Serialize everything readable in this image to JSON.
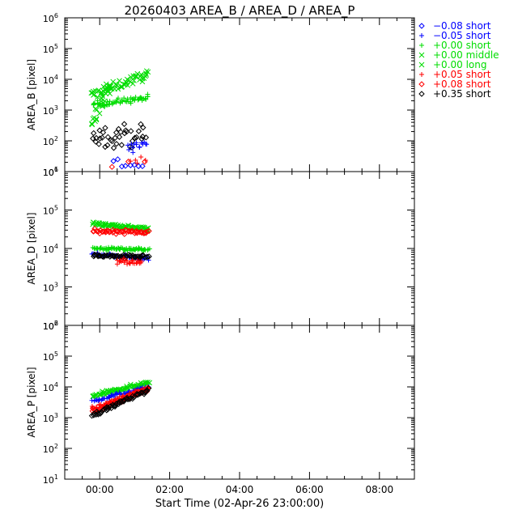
{
  "chart_data": {
    "type": "scatter",
    "title": "20260403 AREA_B / AREA_D / AREA_P",
    "xlabel": "Start Time (02-Apr-26 23:00:00)",
    "x_ticks": [
      "00:00",
      "02:00",
      "04:00",
      "06:00",
      "08:00"
    ],
    "x_unit": "hours since 23:00",
    "xlim": [
      -1.0,
      9.0
    ],
    "legend_position": "top-right",
    "legend": [
      {
        "label": "−0.08 short",
        "symbol": "diamond",
        "color": "#0000ff"
      },
      {
        "label": "−0.05 short",
        "symbol": "plus",
        "color": "#0000ff"
      },
      {
        "label": "+0.00 short",
        "symbol": "plus",
        "color": "#00dd00"
      },
      {
        "label": "+0.00 middle",
        "symbol": "cross",
        "color": "#00dd00"
      },
      {
        "label": "+0.00 long",
        "symbol": "cross",
        "color": "#00dd00"
      },
      {
        "label": "+0.05 short",
        "symbol": "plus",
        "color": "#ff0000"
      },
      {
        "label": "+0.08 short",
        "symbol": "diamond",
        "color": "#ff0000"
      },
      {
        "label": "+0.35 short",
        "symbol": "diamond",
        "color": "#000000"
      }
    ],
    "panels": [
      {
        "name": "AREA_B",
        "ylabel": "AREA_B [pixel]",
        "ylim": [
          10,
          1000000
        ],
        "y_scale": "log",
        "y_tick_labels": [
          [
            "10",
            "1"
          ],
          [
            "10",
            "2"
          ],
          [
            "10",
            "3"
          ],
          [
            "10",
            "4"
          ],
          [
            "10",
            "5"
          ],
          [
            "10",
            "6"
          ]
        ],
        "series": [
          {
            "name": "+0.00 middle",
            "symbol": "cross",
            "color": "#00dd00",
            "x_start": -0.25,
            "x_end": 1.4,
            "y_start": 3000,
            "y_end": 15000,
            "spread": 0.15,
            "n": 60
          },
          {
            "name": "+0.00 short",
            "symbol": "plus",
            "color": "#00dd00",
            "x_start": -0.2,
            "x_end": 1.4,
            "y_start": 1500,
            "y_end": 2500,
            "spread": 0.1,
            "n": 60
          },
          {
            "name": "+0.00 long",
            "symbol": "cross",
            "color": "#00dd00",
            "x_start": -0.25,
            "x_end": 0.3,
            "y_start": 300,
            "y_end": 8000,
            "spread": 0.35,
            "n": 25
          },
          {
            "name": "+0.35 short",
            "symbol": "diamond",
            "color": "#000000",
            "x_start": -0.2,
            "x_end": 1.3,
            "y_start": 150,
            "y_end": 150,
            "spread": 0.35,
            "n": 40
          },
          {
            "name": "−0.05 short",
            "symbol": "plus",
            "color": "#0000ff",
            "x_start": 0.8,
            "x_end": 1.35,
            "y_start": 60,
            "y_end": 80,
            "spread": 0.25,
            "n": 15
          },
          {
            "name": "−0.08 short",
            "symbol": "diamond",
            "color": "#0000ff",
            "x_start": 0.4,
            "x_end": 1.2,
            "y_start": 20,
            "y_end": 15,
            "spread": 0.2,
            "n": 8
          },
          {
            "name": "+0.05 short",
            "symbol": "plus",
            "color": "#ff0000",
            "x_start": 0.9,
            "x_end": 1.3,
            "y_start": 25,
            "y_end": 25,
            "spread": 0.15,
            "n": 5
          },
          {
            "name": "+0.08 short",
            "symbol": "diamond",
            "color": "#ff0000",
            "x_start": -0.1,
            "x_end": 1.3,
            "y_start": 12,
            "y_end": 18,
            "spread": 0.12,
            "n": 4
          }
        ]
      },
      {
        "name": "AREA_D",
        "ylabel": "AREA_D [pixel]",
        "ylim": [
          100,
          1000000
        ],
        "y_scale": "log",
        "y_tick_labels": [
          [
            "10",
            "2"
          ],
          [
            "10",
            "3"
          ],
          [
            "10",
            "4"
          ],
          [
            "10",
            "5"
          ],
          [
            "10",
            "6"
          ]
        ],
        "series": [
          {
            "name": "+0.00 middle",
            "symbol": "cross",
            "color": "#00dd00",
            "x_start": -0.2,
            "x_end": 1.4,
            "y_start": 45000,
            "y_end": 32000,
            "spread": 0.05,
            "n": 70
          },
          {
            "name": "+0.08 short",
            "symbol": "diamond",
            "color": "#ff0000",
            "x_start": -0.2,
            "x_end": 1.4,
            "y_start": 28000,
            "y_end": 27000,
            "spread": 0.05,
            "n": 50
          },
          {
            "name": "+0.00 short",
            "symbol": "plus",
            "color": "#00dd00",
            "x_start": -0.2,
            "x_end": 1.4,
            "y_start": 10000,
            "y_end": 9500,
            "spread": 0.04,
            "n": 70
          },
          {
            "name": "−0.05 short",
            "symbol": "plus",
            "color": "#0000ff",
            "x_start": -0.2,
            "x_end": 1.4,
            "y_start": 7000,
            "y_end": 5500,
            "spread": 0.05,
            "n": 50
          },
          {
            "name": "+0.35 short",
            "symbol": "diamond",
            "color": "#000000",
            "x_start": -0.2,
            "x_end": 1.4,
            "y_start": 6500,
            "y_end": 6000,
            "spread": 0.04,
            "n": 50
          },
          {
            "name": "+0.05 short",
            "symbol": "plus",
            "color": "#ff0000",
            "x_start": 0.5,
            "x_end": 1.2,
            "y_start": 4500,
            "y_end": 4200,
            "spread": 0.08,
            "n": 25
          }
        ]
      },
      {
        "name": "AREA_P",
        "ylabel": "AREA_P [pixel]",
        "ylim": [
          10,
          1000000
        ],
        "y_scale": "log",
        "y_tick_labels": [
          [
            "10",
            "1"
          ],
          [
            "10",
            "2"
          ],
          [
            "10",
            "3"
          ],
          [
            "10",
            "4"
          ],
          [
            "10",
            "5"
          ],
          [
            "10",
            "6"
          ]
        ],
        "series": [
          {
            "name": "+0.00 middle",
            "symbol": "cross",
            "color": "#00dd00",
            "x_start": -0.2,
            "x_end": 1.4,
            "y_start": 5000,
            "y_end": 14000,
            "spread": 0.06,
            "n": 70
          },
          {
            "name": "−0.05 short",
            "symbol": "plus",
            "color": "#0000ff",
            "x_start": -0.2,
            "x_end": 1.4,
            "y_start": 3500,
            "y_end": 10000,
            "spread": 0.05,
            "n": 50
          },
          {
            "name": "+0.05 short",
            "symbol": "plus",
            "color": "#ff0000",
            "x_start": -0.2,
            "x_end": 1.4,
            "y_start": 2000,
            "y_end": 9000,
            "spread": 0.06,
            "n": 60
          },
          {
            "name": "+0.08 short",
            "symbol": "diamond",
            "color": "#ff0000",
            "x_start": -0.2,
            "x_end": 1.4,
            "y_start": 1600,
            "y_end": 8500,
            "spread": 0.07,
            "n": 55
          },
          {
            "name": "+0.35 short",
            "symbol": "diamond",
            "color": "#000000",
            "x_start": -0.2,
            "x_end": 1.4,
            "y_start": 1200,
            "y_end": 8000,
            "spread": 0.06,
            "n": 55
          }
        ]
      }
    ]
  }
}
